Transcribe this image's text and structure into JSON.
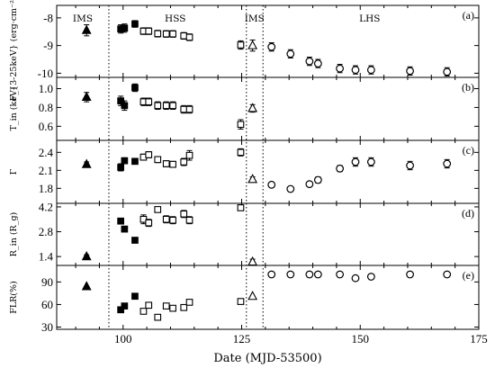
{
  "chart_data": {
    "type": "scatter",
    "x_label": "Date (MJD-53500)",
    "xlim": [
      86,
      175
    ],
    "x_ticks": [
      "100",
      "125",
      "150",
      "175"
    ],
    "state_separators": [
      97,
      126,
      129.5
    ],
    "state_labels": [
      {
        "text": "IMS",
        "x": 91.5
      },
      {
        "text": "HSS",
        "x": 111
      },
      {
        "text": "IMS",
        "x": 127.7
      },
      {
        "text": "LHS",
        "x": 152
      }
    ],
    "panels": [
      {
        "id": "a",
        "label": "(a)",
        "ylabel": "F_{3-25keV} (erg·cm⁻²·s⁻¹)",
        "ylim": [
          -10.15,
          -7.55
        ],
        "y_ticks": [
          "-8",
          "-9",
          "-10"
        ],
        "y_tick_values": [
          -8,
          -9,
          -10
        ],
        "series": [
          {
            "marker": "triangle",
            "points": [
              {
                "x": 92.3,
                "y": -8.45,
                "err": 0.2
              }
            ]
          },
          {
            "marker": "filled-square",
            "points": [
              {
                "x": 99.5,
                "y": -8.4,
                "err": 0.15
              },
              {
                "x": 100.3,
                "y": -8.37,
                "err": 0.15
              },
              {
                "x": 102.5,
                "y": -8.22,
                "err": 0.12
              }
            ]
          },
          {
            "marker": "open-square",
            "points": [
              {
                "x": 104.3,
                "y": -8.48,
                "err": 0.12
              },
              {
                "x": 105.4,
                "y": -8.48,
                "err": 0.12
              },
              {
                "x": 107.3,
                "y": -8.57,
                "err": 0.12
              },
              {
                "x": 109.1,
                "y": -8.58,
                "err": 0.12
              },
              {
                "x": 110.5,
                "y": -8.58,
                "err": 0.12
              },
              {
                "x": 112.8,
                "y": -8.65,
                "err": 0.12
              },
              {
                "x": 114.0,
                "y": -8.7,
                "err": 0.12
              },
              {
                "x": 124.8,
                "y": -8.98,
                "err": 0.15
              }
            ]
          },
          {
            "marker": "open-triangle",
            "points": [
              {
                "x": 127.3,
                "y": -9.0,
                "err": 0.2
              }
            ]
          },
          {
            "marker": "open-circle",
            "points": [
              {
                "x": 131.3,
                "y": -9.05,
                "err": 0.15
              },
              {
                "x": 135.3,
                "y": -9.3,
                "err": 0.15
              },
              {
                "x": 139.3,
                "y": -9.57,
                "err": 0.15
              },
              {
                "x": 141.1,
                "y": -9.65,
                "err": 0.15
              },
              {
                "x": 145.7,
                "y": -9.83,
                "err": 0.15
              },
              {
                "x": 149.0,
                "y": -9.88,
                "err": 0.15
              },
              {
                "x": 152.3,
                "y": -9.88,
                "err": 0.15
              },
              {
                "x": 160.5,
                "y": -9.92,
                "err": 0.15
              },
              {
                "x": 168.3,
                "y": -9.95,
                "err": 0.15
              }
            ]
          }
        ]
      },
      {
        "id": "b",
        "label": "(b)",
        "ylabel": "T_in (keV)",
        "ylim": [
          0.45,
          1.12
        ],
        "y_ticks": [
          "1.0",
          "0.8",
          "0.6"
        ],
        "y_tick_values": [
          1.0,
          0.8,
          0.6
        ],
        "series": [
          {
            "marker": "triangle",
            "points": [
              {
                "x": 92.3,
                "y": 0.91,
                "err": 0.05
              }
            ]
          },
          {
            "marker": "filled-square",
            "points": [
              {
                "x": 99.5,
                "y": 0.87,
                "err": 0.05
              },
              {
                "x": 100.3,
                "y": 0.82,
                "err": 0.05
              },
              {
                "x": 102.5,
                "y": 1.01,
                "err": 0.04
              }
            ]
          },
          {
            "marker": "open-square",
            "points": [
              {
                "x": 104.3,
                "y": 0.86,
                "err": 0.04
              },
              {
                "x": 105.4,
                "y": 0.86,
                "err": 0.04
              },
              {
                "x": 107.3,
                "y": 0.82,
                "err": 0.04
              },
              {
                "x": 109.1,
                "y": 0.82,
                "err": 0.04
              },
              {
                "x": 110.5,
                "y": 0.82,
                "err": 0.04
              },
              {
                "x": 112.8,
                "y": 0.78,
                "err": 0.04
              },
              {
                "x": 114.0,
                "y": 0.78,
                "err": 0.04
              },
              {
                "x": 124.8,
                "y": 0.62,
                "err": 0.05
              }
            ]
          },
          {
            "marker": "open-triangle",
            "points": [
              {
                "x": 127.3,
                "y": 0.79,
                "err": 0.04
              }
            ]
          }
        ]
      },
      {
        "id": "c",
        "label": "(c)",
        "ylabel": "Γ",
        "ylim": [
          1.55,
          2.6
        ],
        "y_ticks": [
          "2.4",
          "2.1",
          "1.8"
        ],
        "y_tick_values": [
          2.4,
          2.1,
          1.8
        ],
        "series": [
          {
            "marker": "triangle",
            "points": [
              {
                "x": 92.3,
                "y": 2.2,
                "err": 0.04
              }
            ]
          },
          {
            "marker": "filled-square",
            "points": [
              {
                "x": 99.5,
                "y": 2.15,
                "err": 0.06
              },
              {
                "x": 100.3,
                "y": 2.26,
                "err": 0.05
              },
              {
                "x": 102.5,
                "y": 2.25,
                "err": 0.04
              }
            ]
          },
          {
            "marker": "open-square",
            "points": [
              {
                "x": 104.3,
                "y": 2.32,
                "err": 0.05
              },
              {
                "x": 105.4,
                "y": 2.36,
                "err": 0.05
              },
              {
                "x": 107.3,
                "y": 2.28,
                "err": 0.05
              },
              {
                "x": 109.1,
                "y": 2.21,
                "err": 0.05
              },
              {
                "x": 110.5,
                "y": 2.2,
                "err": 0.05
              },
              {
                "x": 112.8,
                "y": 2.24,
                "err": 0.06
              },
              {
                "x": 114.0,
                "y": 2.35,
                "err": 0.08
              },
              {
                "x": 124.8,
                "y": 2.4,
                "err": 0.06
              }
            ]
          },
          {
            "marker": "open-triangle",
            "points": [
              {
                "x": 127.3,
                "y": 1.95,
                "err": 0.04
              }
            ]
          },
          {
            "marker": "open-circle",
            "points": [
              {
                "x": 131.3,
                "y": 1.86,
                "err": 0.04
              },
              {
                "x": 135.3,
                "y": 1.79,
                "err": 0.04
              },
              {
                "x": 139.3,
                "y": 1.87,
                "err": 0.04
              },
              {
                "x": 141.1,
                "y": 1.94,
                "err": 0.05
              },
              {
                "x": 145.7,
                "y": 2.13,
                "err": 0.05
              },
              {
                "x": 149.0,
                "y": 2.24,
                "err": 0.07
              },
              {
                "x": 152.3,
                "y": 2.24,
                "err": 0.07
              },
              {
                "x": 160.5,
                "y": 2.18,
                "err": 0.07
              },
              {
                "x": 168.3,
                "y": 2.21,
                "err": 0.07
              }
            ]
          }
        ]
      },
      {
        "id": "d",
        "label": "(d)",
        "ylabel": "R_in (R_g)",
        "ylim": [
          0.9,
          4.4
        ],
        "y_ticks": [
          "4.2",
          "2.8",
          "1.4"
        ],
        "y_tick_values": [
          4.2,
          2.8,
          1.4
        ],
        "series": [
          {
            "marker": "triangle",
            "points": [
              {
                "x": 92.3,
                "y": 1.4,
                "err": 0.1
              }
            ]
          },
          {
            "marker": "filled-square",
            "points": [
              {
                "x": 99.5,
                "y": 3.4,
                "err": 0.15
              },
              {
                "x": 100.3,
                "y": 2.95,
                "err": 0.15
              },
              {
                "x": 102.5,
                "y": 2.32,
                "err": 0.15
              }
            ]
          },
          {
            "marker": "open-square",
            "points": [
              {
                "x": 104.3,
                "y": 3.5,
                "err": 0.25
              },
              {
                "x": 105.4,
                "y": 3.3,
                "err": 0.2
              },
              {
                "x": 107.3,
                "y": 4.05,
                "err": 0.15
              },
              {
                "x": 109.1,
                "y": 3.5,
                "err": 0.2
              },
              {
                "x": 110.5,
                "y": 3.45,
                "err": 0.2
              },
              {
                "x": 112.8,
                "y": 3.8,
                "err": 0.2
              },
              {
                "x": 114.0,
                "y": 3.45,
                "err": 0.2
              },
              {
                "x": 124.8,
                "y": 4.15,
                "err": 0.15
              }
            ]
          },
          {
            "marker": "open-triangle",
            "points": [
              {
                "x": 127.3,
                "y": 1.1,
                "err": 0.15
              }
            ]
          }
        ]
      },
      {
        "id": "e",
        "label": "(e)",
        "ylabel": "FLR(%)",
        "ylim": [
          27,
          112
        ],
        "y_ticks": [
          "90",
          "60",
          "30"
        ],
        "y_tick_values": [
          90,
          60,
          30
        ],
        "series": [
          {
            "marker": "triangle",
            "points": [
              {
                "x": 92.3,
                "y": 84
              }
            ]
          },
          {
            "marker": "filled-square",
            "points": [
              {
                "x": 99.5,
                "y": 53
              },
              {
                "x": 100.3,
                "y": 58
              },
              {
                "x": 102.5,
                "y": 71
              }
            ]
          },
          {
            "marker": "open-square",
            "points": [
              {
                "x": 104.3,
                "y": 51
              },
              {
                "x": 105.4,
                "y": 59
              },
              {
                "x": 107.3,
                "y": 43
              },
              {
                "x": 109.1,
                "y": 58
              },
              {
                "x": 110.5,
                "y": 55
              },
              {
                "x": 112.8,
                "y": 56
              },
              {
                "x": 114.0,
                "y": 63
              },
              {
                "x": 124.8,
                "y": 64
              }
            ]
          },
          {
            "marker": "open-triangle",
            "points": [
              {
                "x": 127.3,
                "y": 71
              }
            ]
          },
          {
            "marker": "open-circle",
            "points": [
              {
                "x": 131.3,
                "y": 100
              },
              {
                "x": 135.3,
                "y": 100
              },
              {
                "x": 139.3,
                "y": 100
              },
              {
                "x": 141.1,
                "y": 100
              },
              {
                "x": 145.7,
                "y": 100
              },
              {
                "x": 149.0,
                "y": 95
              },
              {
                "x": 152.3,
                "y": 97
              },
              {
                "x": 160.5,
                "y": 100
              },
              {
                "x": 168.3,
                "y": 100
              }
            ]
          }
        ]
      }
    ]
  }
}
